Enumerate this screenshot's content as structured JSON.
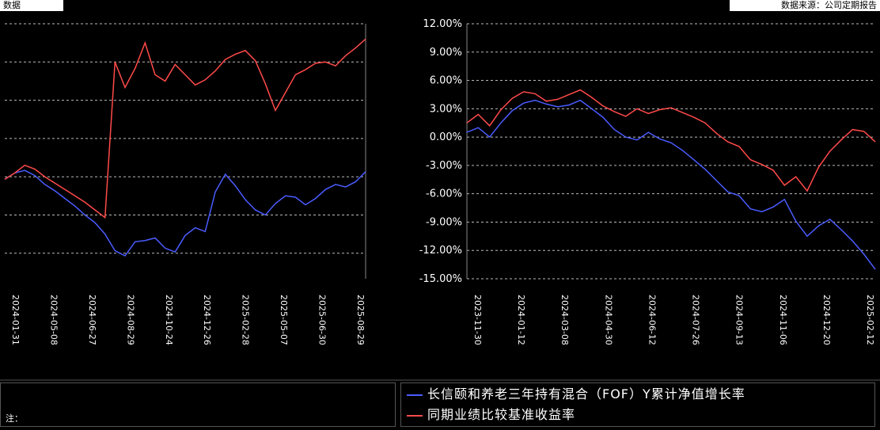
{
  "header": {
    "left_text": "数据",
    "right_text": "数据来源：公司定期报告"
  },
  "legend": {
    "items": [
      {
        "label": "长信颐和养老三年持有混合（FOF）Y累计净值增长率",
        "color": "#4a5cff"
      },
      {
        "label": "同期业绩比较基准收益率",
        "color": "#ff4a4a"
      }
    ]
  },
  "footer_text": "注：",
  "chart_data": [
    {
      "type": "line",
      "panel": "left",
      "x_tick_labels": [
        "2024-01-31",
        "2024-05-08",
        "2024-06-27",
        "2024-08-29",
        "2024-10-24",
        "2024-12-26",
        "2025-02-28",
        "2025-05-07",
        "2025-06-30",
        "2025-08-29"
      ],
      "series": [
        {
          "name": "长信颐和养老三年持有混合（FOF）Y累计净值增长率",
          "color": "#4a5cff",
          "values": [
            -0.2,
            0.3,
            0.5,
            0.1,
            -0.6,
            -1.1,
            -1.7,
            -2.3,
            -3.0,
            -3.6,
            -4.5,
            -5.8,
            -6.2,
            -5.1,
            -5.0,
            -4.8,
            -5.6,
            -5.9,
            -4.6,
            -4.0,
            -4.3,
            -1.2,
            0.2,
            -0.7,
            -1.8,
            -2.6,
            -3.0,
            -2.1,
            -1.5,
            -1.6,
            -2.2,
            -1.7,
            -1.0,
            -0.6,
            -0.8,
            -0.4,
            0.4
          ]
        },
        {
          "name": "同期业绩比较基准收益率",
          "color": "#ff4a4a",
          "values": [
            -0.2,
            0.3,
            0.9,
            0.6,
            0.0,
            -0.5,
            -1.0,
            -1.5,
            -2.0,
            -2.6,
            -3.2,
            9.0,
            7.0,
            8.5,
            10.5,
            8.0,
            7.5,
            8.8,
            8.0,
            7.2,
            7.6,
            8.3,
            9.2,
            9.6,
            9.9,
            9.1,
            7.3,
            5.2,
            6.6,
            8.0,
            8.4,
            8.9,
            9.0,
            8.7,
            9.5,
            10.1,
            10.8
          ]
        }
      ]
    },
    {
      "type": "line",
      "panel": "right",
      "y_tick_labels": [
        "12.00%",
        "9.00%",
        "6.00%",
        "3.00%",
        "0.00%",
        "-3.00%",
        "-6.00%",
        "-9.00%",
        "-12.00%",
        "-15.00%"
      ],
      "ylim": [
        -15,
        12
      ],
      "x_tick_labels": [
        "2023-11-30",
        "2024-01-12",
        "2024-03-08",
        "2024-04-30",
        "2024-06-12",
        "2024-07-26",
        "2024-09-13",
        "2024-11-06",
        "2024-12-20",
        "2025-02-12"
      ],
      "series": [
        {
          "name": "长信颐和养老三年持有混合（FOF）Y累计净值增长率",
          "color": "#4a5cff",
          "values": [
            0.5,
            1.0,
            0.0,
            1.5,
            2.8,
            3.6,
            3.9,
            3.5,
            3.2,
            3.4,
            3.9,
            3.0,
            2.1,
            0.8,
            0.0,
            -0.3,
            0.5,
            -0.2,
            -0.6,
            -1.4,
            -2.4,
            -3.4,
            -4.6,
            -5.8,
            -6.2,
            -7.6,
            -7.9,
            -7.4,
            -6.6,
            -8.9,
            -10.5,
            -9.4,
            -8.7,
            -9.8,
            -11.0,
            -12.4,
            -14.0
          ]
        },
        {
          "name": "同期业绩比较基准收益率",
          "color": "#ff4a4a",
          "values": [
            1.5,
            2.4,
            1.2,
            2.9,
            4.1,
            4.8,
            4.6,
            3.8,
            4.0,
            4.5,
            5.0,
            4.2,
            3.3,
            2.7,
            2.2,
            3.0,
            2.5,
            2.9,
            3.1,
            2.6,
            2.1,
            1.5,
            0.4,
            -0.5,
            -1.0,
            -2.4,
            -2.9,
            -3.5,
            -5.1,
            -4.2,
            -5.7,
            -3.2,
            -1.5,
            -0.3,
            0.8,
            0.6,
            -0.5
          ]
        }
      ]
    }
  ]
}
